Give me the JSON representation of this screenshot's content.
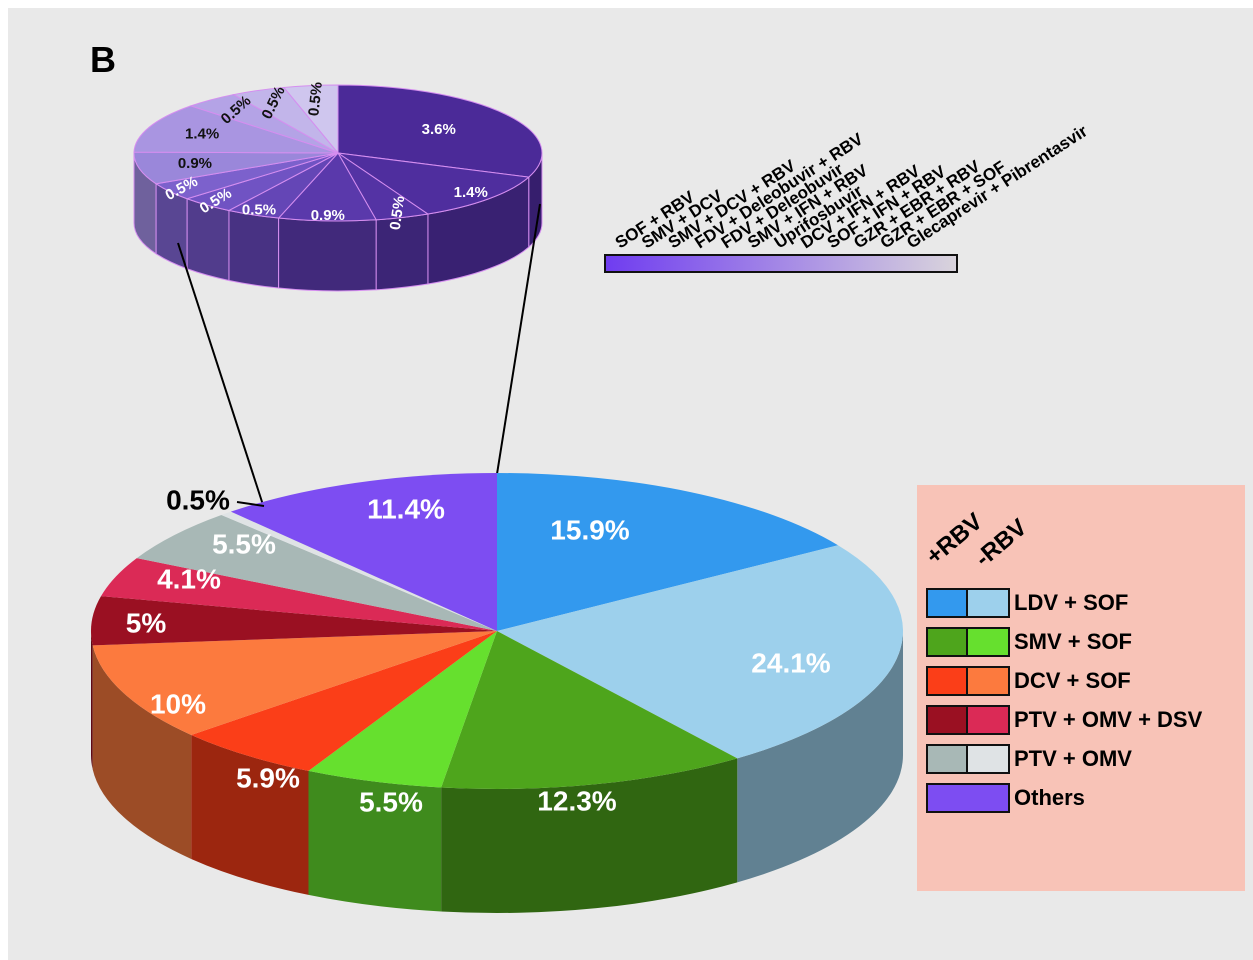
{
  "panel_label": "B",
  "chart_data": [
    {
      "type": "pie",
      "slices": [
        {
          "label": "LDV + SOF (+RBV)",
          "value": 15.9,
          "display": "15.9%",
          "color": "#3399ee"
        },
        {
          "label": "LDV + SOF (-RBV)",
          "value": 24.1,
          "display": "24.1%",
          "color": "#9dd0ec"
        },
        {
          "label": "SMV + SOF (+RBV)",
          "value": 12.3,
          "display": "12.3%",
          "color": "#4ea51c"
        },
        {
          "label": "SMV + SOF (-RBV)",
          "value": 5.5,
          "display": "5.5%",
          "color": "#66e02e"
        },
        {
          "label": "DCV + SOF (+RBV)",
          "value": 5.9,
          "display": "5.9%",
          "color": "#fb3e18"
        },
        {
          "label": "DCV + SOF (-RBV)",
          "value": 10.0,
          "display": "10%",
          "color": "#fc7a3e"
        },
        {
          "label": "PTV + OMV + DSV (+RBV)",
          "value": 5.0,
          "display": "5%",
          "color": "#9a1022"
        },
        {
          "label": "PTV + OMV + DSV (-RBV)",
          "value": 4.1,
          "display": "4.1%",
          "color": "#db2a56"
        },
        {
          "label": "PTV + OMV (+RBV)",
          "value": 5.5,
          "display": "5.5%",
          "color": "#a8b8b6"
        },
        {
          "label": "PTV + OMV (-RBV)",
          "value": 0.5,
          "display": "0.5%",
          "color": "#dfe3e5"
        },
        {
          "label": "Others",
          "value": 11.4,
          "display": "11.4%",
          "color": "#7d4df2"
        }
      ]
    },
    {
      "type": "pie",
      "slices": [
        {
          "label": "SOF + RBV",
          "value": 3.6,
          "display": "3.6%",
          "color": "#4b2a98"
        },
        {
          "label": "SMV + DCV",
          "value": 1.4,
          "display": "1.4%",
          "color": "#4f2e9e"
        },
        {
          "label": "SMV + DCV + RBV",
          "value": 0.5,
          "display": "0.5%",
          "color": "#5433a4"
        },
        {
          "label": "FDV + Deleobuvir + RBV",
          "value": 0.9,
          "display": "0.9%",
          "color": "#5a39ab"
        },
        {
          "label": "FDV + Deleobuvir",
          "value": 0.5,
          "display": "0.5%",
          "color": "#6446b6"
        },
        {
          "label": "SMV + IFN + RBV",
          "value": 0.5,
          "display": "0.5%",
          "color": "#7053c3"
        },
        {
          "label": "Uprifosbuvir",
          "value": 0.5,
          "display": "0.5%",
          "color": "#7c61cc"
        },
        {
          "label": "DCV + IFN + RBV",
          "value": 0.9,
          "display": "0.9%",
          "color": "#9a87da"
        },
        {
          "label": "SOF + IFN + RBV",
          "value": 1.4,
          "display": "1.4%",
          "color": "#a995e1"
        },
        {
          "label": "GZR + EBR + RBV",
          "value": 0.5,
          "display": "0.5%",
          "color": "#b4a3e6"
        },
        {
          "label": "GZR + EBR + SOF",
          "value": 0.5,
          "display": "0.5%",
          "color": "#c2b5ea"
        },
        {
          "label": "Glecaprevir + Pibrentasvir",
          "value": 0.5,
          "display": "0.5%",
          "color": "#cfc6ee"
        }
      ]
    }
  ],
  "others_scale": {
    "labels": [
      "SOF + RBV",
      "SMV + DCV",
      "SMV + DCV + RBV",
      "FDV + Deleobuvir + RBV",
      "FDV + Deleobuvir",
      "SMV + IFN + RBV",
      "Uprifosbuvir",
      "DCV + IFN + RBV",
      "SOF + IFN + RBV",
      "GZR + EBR + RBV",
      "GZR + EBR + SOF",
      "Glecaprevir + Pibrentasvir"
    ],
    "color_start": "#6f3cf0",
    "color_end": "#d9d4dc"
  },
  "legend": {
    "col_plus": "+RBV",
    "col_minus": "-RBV",
    "items": [
      {
        "label": "LDV + SOF",
        "color_plus": "#3399ee",
        "color_minus": "#9dd0ec"
      },
      {
        "label": "SMV + SOF",
        "color_plus": "#4ea51c",
        "color_minus": "#66e02e"
      },
      {
        "label": "DCV + SOF",
        "color_plus": "#fb3e18",
        "color_minus": "#fc7a3e"
      },
      {
        "label": "PTV + OMV + DSV",
        "color_plus": "#9a1022",
        "color_minus": "#db2a56"
      },
      {
        "label": "PTV + OMV",
        "color_plus": "#a8b8b6",
        "color_minus": "#dfe3e5"
      },
      {
        "label": "Others",
        "color": "#7d4df2"
      }
    ]
  }
}
